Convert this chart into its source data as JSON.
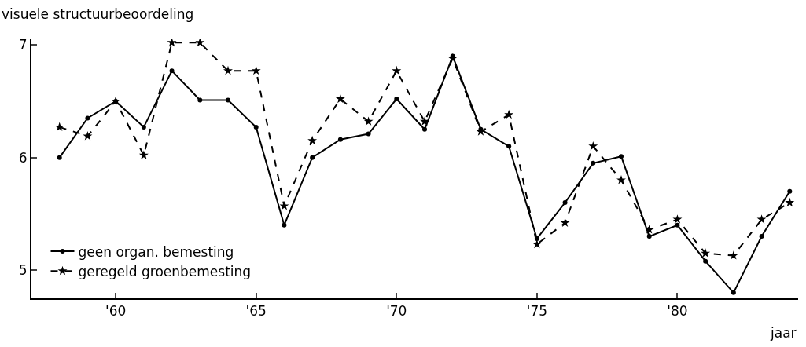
{
  "chart_data": {
    "type": "line",
    "ylabel": "visuele structuurbeoordeling",
    "xlabel": "jaar",
    "x": [
      1958,
      1959,
      1960,
      1961,
      1962,
      1963,
      1964,
      1965,
      1966,
      1967,
      1968,
      1969,
      1970,
      1971,
      1972,
      1973,
      1974,
      1975,
      1976,
      1977,
      1978,
      1979,
      1980,
      1981,
      1982,
      1983,
      1984
    ],
    "series": [
      {
        "name": "geen organ. bemesting",
        "color": "#000000",
        "marker": "circle",
        "line_style": "solid",
        "values": [
          6.0,
          6.35,
          6.5,
          6.27,
          6.77,
          6.51,
          6.51,
          6.27,
          5.4,
          6.0,
          6.16,
          6.21,
          6.52,
          6.25,
          6.9,
          6.25,
          6.1,
          5.28,
          5.6,
          5.95,
          6.01,
          5.3,
          5.4,
          5.08,
          4.8,
          5.3,
          5.7
        ]
      },
      {
        "name": "geregeld groenbemesting",
        "color": "#000000",
        "marker": "star",
        "line_style": "dashed",
        "values": [
          6.27,
          6.19,
          6.5,
          6.02,
          7.02,
          7.02,
          6.77,
          6.77,
          5.57,
          6.15,
          6.52,
          6.32,
          6.77,
          6.32,
          6.88,
          6.23,
          6.38,
          5.23,
          5.42,
          6.1,
          5.8,
          5.36,
          5.45,
          5.15,
          5.13,
          5.45,
          5.6
        ]
      }
    ],
    "xlim": [
      1957,
      1984.3
    ],
    "xticks": [
      {
        "value": 1960,
        "label": "'60"
      },
      {
        "value": 1965,
        "label": "'65"
      },
      {
        "value": 1970,
        "label": "'70"
      },
      {
        "value": 1975,
        "label": "'75"
      },
      {
        "value": 1980,
        "label": "'80"
      }
    ],
    "ylim": [
      4.75,
      7.05
    ],
    "yticks": [
      5,
      6,
      7
    ],
    "grid": false,
    "legend": "bottom left"
  }
}
